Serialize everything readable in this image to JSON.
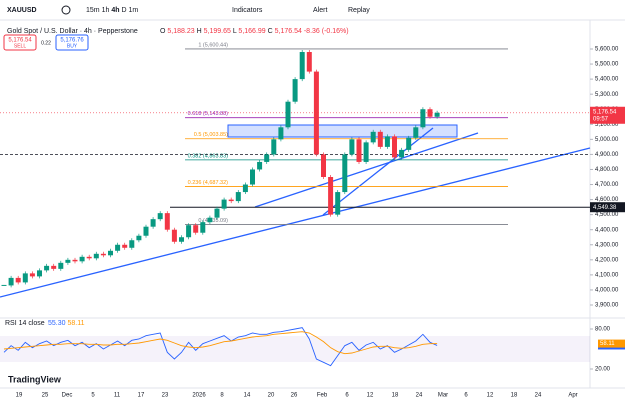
{
  "toolbar": {
    "symbol": "XAUUSD",
    "intervals": [
      "15m",
      "1h",
      "4h",
      "D",
      "1m"
    ],
    "indicators": "Indicators",
    "alert": "Alert",
    "replay": "Replay"
  },
  "legend": {
    "title": "Gold Spot / U.S. Dollar · 4h · Pepperstone",
    "ohlc": [
      {
        "key": "O",
        "value": "5,188.23"
      },
      {
        "key": "H",
        "value": "5,199.65"
      },
      {
        "key": "L",
        "value": "5,166.99"
      },
      {
        "key": "C",
        "value": "5,176.54"
      }
    ],
    "change": "-8.36 (-0.16%)"
  },
  "trade": {
    "sell_price": "5,176.54",
    "sell": "SELL",
    "spread": "0.22",
    "buy_price": "5,176.76",
    "buy": "BUY"
  },
  "chart_data": {
    "type": "candlestick",
    "categories": [
      "19",
      "25",
      "Dec",
      "5",
      "11",
      "17",
      "23",
      "2026",
      "8",
      "14",
      "20",
      "26",
      "Feb",
      "6",
      "12",
      "18",
      "24",
      "Mar",
      "6",
      "12",
      "18",
      "24",
      "Apr"
    ],
    "closes": [
      4030,
      4080,
      4050,
      4110,
      4090,
      4130,
      4160,
      4140,
      4180,
      4200,
      4190,
      4220,
      4210,
      4240,
      4230,
      4260,
      4300,
      4280,
      4330,
      4360,
      4420,
      4470,
      4510,
      4400,
      4320,
      4350,
      4430,
      4380,
      4450,
      4480,
      4540,
      4600,
      4590,
      4650,
      4700,
      4800,
      4850,
      4900,
      5000,
      5080,
      5250,
      5400,
      5580,
      5450,
      4900,
      4750,
      4500,
      4650,
      4900,
      5000,
      4850,
      4980,
      5050,
      4950,
      5020,
      4880,
      4930,
      5010,
      5080,
      5200,
      5150,
      5176.54
    ],
    "up_color": "#089981",
    "down_color": "#f23645",
    "ylim": [
      3900,
      5600
    ],
    "yticks": [
      {
        "value": 5600,
        "label": "5,600.00"
      },
      {
        "value": 5500,
        "label": "5,500.00"
      },
      {
        "value": 5400,
        "label": "5,400.00"
      },
      {
        "value": 5300,
        "label": "5,300.00"
      },
      {
        "value": 5200,
        "label": "5,200.00"
      },
      {
        "value": 5100,
        "label": "5,100.00"
      },
      {
        "value": 5000,
        "label": "5,000.00"
      },
      {
        "value": 4900,
        "label": "4,900.00"
      },
      {
        "value": 4800,
        "label": "4,800.00"
      },
      {
        "value": 4700,
        "label": "4,700.00"
      },
      {
        "value": 4600,
        "label": "4,600.00"
      },
      {
        "value": 4500,
        "label": "4,500.00"
      },
      {
        "value": 4400,
        "label": "4,400.00"
      },
      {
        "value": 4300,
        "label": "4,300.00"
      },
      {
        "value": 4200,
        "label": "4,200.00"
      },
      {
        "value": 4100,
        "label": "4,100.00"
      },
      {
        "value": 4000,
        "label": "4,000.00"
      },
      {
        "value": 3900,
        "label": "3,900.00"
      }
    ],
    "current": {
      "value": 5176.54,
      "label": "5,176.54",
      "countdown": "09:57"
    },
    "level": {
      "value": 4549.38,
      "label": "4,549.38"
    },
    "fib": [
      {
        "value": 5600.44,
        "label": "1 (5,600.44)",
        "color": "#787b86"
      },
      {
        "value": 5143.88,
        "label": "0.618 (5,143.88)",
        "color": "#9c27b0"
      },
      {
        "value": 5003.85,
        "label": "0.5 (5,003.85)",
        "color": "#ff9800"
      },
      {
        "value": 4863.83,
        "label": "0.382 (4,863.83)",
        "color": "#00897b"
      },
      {
        "value": 4687.32,
        "label": "0.236 (4,687.32)",
        "color": "#ff9800"
      },
      {
        "value": 4435.09,
        "label": "0 (4,435.09)",
        "color": "#787b86"
      }
    ],
    "rsi": {
      "label": "RSI 14 close",
      "ylim": [
        20,
        80
      ],
      "yticks": [
        {
          "value": 80,
          "label": "80.00"
        },
        {
          "value": 20,
          "label": "20.00"
        }
      ],
      "series": [
        {
          "name": "55.30",
          "color": "#2962ff",
          "values": [
            45,
            55,
            48,
            60,
            52,
            58,
            62,
            55,
            60,
            63,
            55,
            60,
            52,
            58,
            50,
            56,
            62,
            55,
            63,
            65,
            70,
            72,
            74,
            45,
            35,
            45,
            60,
            48,
            58,
            62,
            66,
            70,
            62,
            68,
            70,
            74,
            72,
            72,
            75,
            76,
            78,
            80,
            82,
            65,
            35,
            30,
            25,
            40,
            55,
            60,
            48,
            56,
            60,
            50,
            55,
            45,
            50,
            56,
            62,
            72,
            60,
            55.3
          ]
        },
        {
          "name": "58.11",
          "color": "#ff9800",
          "values": [
            50,
            51,
            52,
            53,
            54,
            55,
            56,
            57,
            57,
            58,
            58,
            58,
            57,
            57,
            56,
            56,
            57,
            57,
            58,
            59,
            61,
            63,
            65,
            63,
            59,
            55,
            53,
            52,
            53,
            55,
            58,
            61,
            62,
            64,
            66,
            68,
            69,
            70,
            72,
            73,
            74,
            75,
            76,
            74,
            68,
            61,
            52,
            46,
            43,
            44,
            47,
            50,
            53,
            54,
            54,
            52,
            51,
            52,
            54,
            57,
            58,
            58.11
          ]
        }
      ]
    }
  },
  "brand": "TradingView"
}
